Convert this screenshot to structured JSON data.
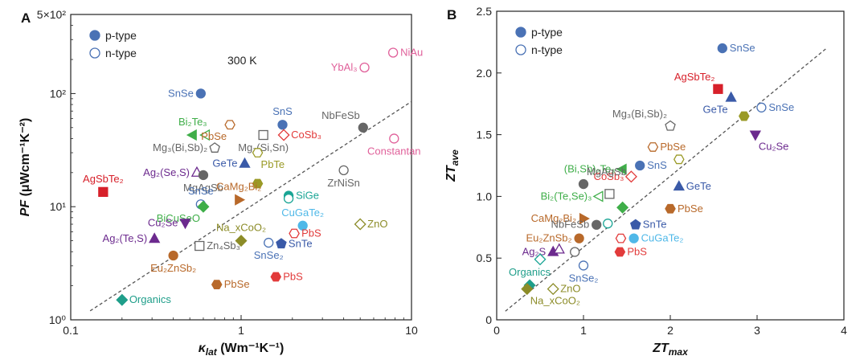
{
  "chart_data": [
    {
      "type": "scatter",
      "panel": "A",
      "xlabel_main": "κ",
      "xlabel_sub": "lat",
      "xlabel_unit": " (Wm⁻¹K⁻¹)",
      "ylabel_main": "PF",
      "ylabel_unit": " (μWcm⁻¹K⁻²)",
      "x_scale": "log",
      "y_scale": "log",
      "xlim": [
        0.1,
        10
      ],
      "ylim": [
        1,
        500
      ],
      "x_ticks": [
        {
          "v": 0.1,
          "label": "0.1"
        },
        {
          "v": 1,
          "label": "1"
        },
        {
          "v": 10,
          "label": "10"
        }
      ],
      "y_ticks": [
        {
          "v": 1,
          "label": "10⁰"
        },
        {
          "v": 10,
          "label": "10¹"
        },
        {
          "v": 100,
          "label": "10²"
        },
        {
          "v": 500,
          "label": "5×10²"
        }
      ],
      "annotation": "300 K",
      "legend": [
        {
          "label": "p-type",
          "filled": true
        },
        {
          "label": "n-type",
          "filled": false
        }
      ],
      "points": [
        {
          "name": "SnSe",
          "x": 0.58,
          "y": 100,
          "marker": "circle",
          "filled": true,
          "color": "#4a72b5",
          "labelSide": "left"
        },
        {
          "name": "Bi₂Te₃",
          "x": 0.52,
          "y": 43,
          "marker": "triL",
          "filled": true,
          "color": "#3fae49",
          "labelSide": "above"
        },
        {
          "name": "Bi₂Te₃ n",
          "x": 0.62,
          "y": 43,
          "marker": "triL",
          "filled": false,
          "color": "#3fae49"
        },
        {
          "name": "PbSe",
          "x": 0.86,
          "y": 53,
          "marker": "hex",
          "filled": false,
          "color": "#b8692a",
          "labelSide": "belowleft"
        },
        {
          "name": "Mg₃(Bi,Sb)₂",
          "x": 0.7,
          "y": 33,
          "marker": "pent",
          "filled": false,
          "color": "#666666",
          "labelSide": "left"
        },
        {
          "name": "Mg₂(Si,Sn)",
          "x": 1.35,
          "y": 43,
          "marker": "square",
          "filled": false,
          "color": "#666666",
          "labelSide": "below"
        },
        {
          "name": "SnS",
          "x": 1.75,
          "y": 53,
          "marker": "circle",
          "filled": true,
          "color": "#4a72b5",
          "labelSide": "above"
        },
        {
          "name": "CoSb₃",
          "x": 1.78,
          "y": 43,
          "marker": "diamond",
          "filled": false,
          "color": "#e23b3b",
          "labelSide": "right"
        },
        {
          "name": "GeTe",
          "x": 1.05,
          "y": 24,
          "marker": "triU",
          "filled": true,
          "color": "#3a5aa8",
          "labelSide": "left"
        },
        {
          "name": "Ag₂(Se,S)",
          "x": 0.55,
          "y": 20,
          "marker": "triU",
          "filled": false,
          "color": "#6c2a8e",
          "labelSide": "left"
        },
        {
          "name": "MgAgSb",
          "x": 0.6,
          "y": 19,
          "marker": "circle",
          "filled": true,
          "color": "#666666",
          "labelSide": "below"
        },
        {
          "name": "PbTe",
          "x": 1.25,
          "y": 30,
          "marker": "hex",
          "filled": false,
          "color": "#9a9a26",
          "labelSide": "belowright"
        },
        {
          "name": "PbTe p",
          "x": 1.25,
          "y": 16,
          "marker": "hex",
          "filled": true,
          "color": "#9a9a26"
        },
        {
          "name": "NbFeSb",
          "x": 5.2,
          "y": 50,
          "marker": "circle",
          "filled": true,
          "color": "#666666",
          "labelSide": "aboveleft"
        },
        {
          "name": "YbAl₃",
          "x": 5.3,
          "y": 170,
          "marker": "circle",
          "filled": false,
          "color": "#e0609a",
          "labelSide": "left"
        },
        {
          "name": "NiAu",
          "x": 7.8,
          "y": 230,
          "marker": "circle",
          "filled": false,
          "color": "#e0609a",
          "labelSide": "right"
        },
        {
          "name": "Constantan",
          "x": 7.9,
          "y": 40,
          "marker": "circle",
          "filled": false,
          "color": "#e0609a",
          "labelSide": "below"
        },
        {
          "name": "AgSbTe₂",
          "x": 0.155,
          "y": 13.5,
          "marker": "square",
          "filled": true,
          "color": "#d7202a",
          "labelSide": "above"
        },
        {
          "name": "SnSe n",
          "x": 0.58,
          "y": 10.5,
          "marker": "circle",
          "filled": false,
          "color": "#4a72b5",
          "labelSide": "above",
          "label": "SnSe"
        },
        {
          "name": "BiCuSeO",
          "x": 0.6,
          "y": 10,
          "marker": "diamond",
          "filled": true,
          "color": "#3fae49",
          "labelSide": "belowleft"
        },
        {
          "name": "CaMg₂Bi₂",
          "x": 0.97,
          "y": 11.5,
          "marker": "triR",
          "filled": true,
          "color": "#b8692a",
          "labelSide": "above"
        },
        {
          "name": "ZrNiSn",
          "x": 4.0,
          "y": 21,
          "marker": "circle",
          "filled": false,
          "color": "#666666",
          "labelSide": "below"
        },
        {
          "name": "SiGe",
          "x": 1.9,
          "y": 12.5,
          "marker": "circle",
          "filled": true,
          "color": "#1aa595",
          "labelSide": "right"
        },
        {
          "name": "SiGe n",
          "x": 1.9,
          "y": 11.8,
          "marker": "circle",
          "filled": false,
          "color": "#1aa595"
        },
        {
          "name": "Cu₂Se",
          "x": 0.47,
          "y": 7.2,
          "marker": "triD",
          "filled": true,
          "color": "#6c2a8e",
          "labelSide": "left"
        },
        {
          "name": "Ag₂(Te,S)",
          "x": 0.31,
          "y": 5.2,
          "marker": "triU",
          "filled": true,
          "color": "#6c2a8e",
          "labelSide": "left"
        },
        {
          "name": "Na_xCoO₂",
          "x": 1.0,
          "y": 5.0,
          "marker": "diamond",
          "filled": true,
          "color": "#8c8c28",
          "labelSide": "above"
        },
        {
          "name": "Zn₄Sb₃",
          "x": 0.57,
          "y": 4.5,
          "marker": "square",
          "filled": false,
          "color": "#666666",
          "labelSide": "right"
        },
        {
          "name": "Eu₂ZnSb₂",
          "x": 0.4,
          "y": 3.7,
          "marker": "circle",
          "filled": true,
          "color": "#b8692a",
          "labelSide": "below"
        },
        {
          "name": "CuGaTe₂",
          "x": 2.3,
          "y": 6.8,
          "marker": "circle",
          "filled": true,
          "color": "#4fb8e8",
          "labelSide": "above"
        },
        {
          "name": "PbS n",
          "x": 2.05,
          "y": 5.8,
          "marker": "hex",
          "filled": false,
          "color": "#e23b3b",
          "labelSide": "right",
          "label": "PbS"
        },
        {
          "name": "SnSe₂",
          "x": 1.45,
          "y": 4.8,
          "marker": "circle",
          "filled": false,
          "color": "#4a72b5",
          "labelSide": "below"
        },
        {
          "name": "SnTe",
          "x": 1.72,
          "y": 4.7,
          "marker": "pent",
          "filled": true,
          "color": "#3a5aa8",
          "labelSide": "right"
        },
        {
          "name": "ZnO",
          "x": 5.0,
          "y": 7.0,
          "marker": "diamond",
          "filled": false,
          "color": "#8c8c28",
          "labelSide": "right"
        },
        {
          "name": "PbSe p",
          "x": 0.72,
          "y": 2.05,
          "marker": "hex",
          "filled": true,
          "color": "#b8692a",
          "labelSide": "right",
          "label": "PbSe"
        },
        {
          "name": "PbS",
          "x": 1.6,
          "y": 2.4,
          "marker": "hex",
          "filled": true,
          "color": "#e23b3b",
          "labelSide": "right"
        },
        {
          "name": "Organics",
          "x": 0.2,
          "y": 1.5,
          "marker": "diamond",
          "filled": true,
          "color": "#1f9e8a",
          "labelSide": "right"
        }
      ],
      "trend_line": [
        [
          0.13,
          1.2
        ],
        [
          10,
          85
        ]
      ]
    },
    {
      "type": "scatter",
      "panel": "B",
      "xlabel_main": "ZT",
      "xlabel_sub": "max",
      "ylabel_main": "ZT",
      "ylabel_sub": "ave",
      "xlim": [
        0,
        4
      ],
      "ylim": [
        0,
        2.5
      ],
      "x_ticks": [
        {
          "v": 0,
          "label": "0"
        },
        {
          "v": 1,
          "label": "1"
        },
        {
          "v": 2,
          "label": "2"
        },
        {
          "v": 3,
          "label": "3"
        },
        {
          "v": 4,
          "label": "4"
        }
      ],
      "y_ticks": [
        {
          "v": 0,
          "label": "0"
        },
        {
          "v": 0.5,
          "label": "0.5"
        },
        {
          "v": 1.0,
          "label": "1.0"
        },
        {
          "v": 1.5,
          "label": "1.5"
        },
        {
          "v": 2.0,
          "label": "2.0"
        },
        {
          "v": 2.5,
          "label": "2.5"
        }
      ],
      "legend": [
        {
          "label": "p-type",
          "filled": true
        },
        {
          "label": "n-type",
          "filled": false
        }
      ],
      "points": [
        {
          "name": "SnSe",
          "x": 2.6,
          "y": 2.2,
          "marker": "circle",
          "filled": true,
          "color": "#4a72b5",
          "labelSide": "right"
        },
        {
          "name": "AgSbTe₂",
          "x": 2.55,
          "y": 1.87,
          "marker": "square",
          "filled": true,
          "color": "#d7202a",
          "labelSide": "aboveleft"
        },
        {
          "name": "GeTe",
          "x": 2.7,
          "y": 1.8,
          "marker": "triU",
          "filled": true,
          "color": "#3a5aa8",
          "labelSide": "belowleft"
        },
        {
          "name": "SnSe n",
          "x": 3.05,
          "y": 1.72,
          "marker": "circle",
          "filled": false,
          "color": "#4a72b5",
          "labelSide": "right",
          "label": "SnSe"
        },
        {
          "name": "Mg₃(Bi,Sb)₂",
          "x": 2.0,
          "y": 1.57,
          "marker": "pent",
          "filled": false,
          "color": "#666666",
          "labelSide": "aboveleft"
        },
        {
          "name": "PbTe p",
          "x": 2.85,
          "y": 1.65,
          "marker": "hex",
          "filled": true,
          "color": "#9a9a26"
        },
        {
          "name": "Cu₂Se",
          "x": 2.98,
          "y": 1.5,
          "marker": "triD",
          "filled": true,
          "color": "#6c2a8e",
          "labelSide": "belowright"
        },
        {
          "name": "PbSe",
          "x": 1.8,
          "y": 1.4,
          "marker": "hex",
          "filled": false,
          "color": "#b8692a",
          "labelSide": "right"
        },
        {
          "name": "PbTe n",
          "x": 2.1,
          "y": 1.3,
          "marker": "hex",
          "filled": false,
          "color": "#9a9a26"
        },
        {
          "name": "(Bi,Sb)₂Te₃",
          "x": 1.45,
          "y": 1.22,
          "marker": "triL",
          "filled": true,
          "color": "#3fae49",
          "labelSide": "left"
        },
        {
          "name": "SnS",
          "x": 1.65,
          "y": 1.25,
          "marker": "circle",
          "filled": true,
          "color": "#4a72b5",
          "labelSide": "right"
        },
        {
          "name": "CoSb₃",
          "x": 1.55,
          "y": 1.16,
          "marker": "diamond",
          "filled": false,
          "color": "#e23b3b",
          "labelSide": "left"
        },
        {
          "name": "GeTe n",
          "x": 2.1,
          "y": 1.08,
          "marker": "triU",
          "filled": true,
          "color": "#3a5aa8",
          "labelSide": "right",
          "label": "GeTe"
        },
        {
          "name": "MgAgSb",
          "x": 1.0,
          "y": 1.1,
          "marker": "circle",
          "filled": true,
          "color": "#666666",
          "labelSide": "aboveright"
        },
        {
          "name": "Mg₂(Si,Sn)",
          "x": 1.3,
          "y": 1.02,
          "marker": "square",
          "filled": false,
          "color": "#666666"
        },
        {
          "name": "Bi₂(Te,Se)₃",
          "x": 1.18,
          "y": 1.0,
          "marker": "triL",
          "filled": false,
          "color": "#3fae49",
          "labelSide": "left"
        },
        {
          "name": "PbSe p",
          "x": 2.0,
          "y": 0.9,
          "marker": "hex",
          "filled": true,
          "color": "#b8692a",
          "labelSide": "right",
          "label": "PbSe"
        },
        {
          "name": "BiCuSeO",
          "x": 1.45,
          "y": 0.91,
          "marker": "diamond",
          "filled": true,
          "color": "#3fae49"
        },
        {
          "name": "CaMg₂Bi₂",
          "x": 1.0,
          "y": 0.82,
          "marker": "triR",
          "filled": true,
          "color": "#b8692a",
          "labelSide": "left"
        },
        {
          "name": "NbFeSb",
          "x": 1.15,
          "y": 0.77,
          "marker": "circle",
          "filled": true,
          "color": "#666666",
          "labelSide": "left"
        },
        {
          "name": "SnTe",
          "x": 1.6,
          "y": 0.77,
          "marker": "pent",
          "filled": true,
          "color": "#3a5aa8",
          "labelSide": "right"
        },
        {
          "name": "SiGe n",
          "x": 1.28,
          "y": 0.78,
          "marker": "circle",
          "filled": false,
          "color": "#1aa595"
        },
        {
          "name": "Eu₂ZnSb₂",
          "x": 0.95,
          "y": 0.66,
          "marker": "circle",
          "filled": true,
          "color": "#b8692a",
          "labelSide": "left"
        },
        {
          "name": "PbS n",
          "x": 1.43,
          "y": 0.66,
          "marker": "hex",
          "filled": false,
          "color": "#e23b3b"
        },
        {
          "name": "CuGaTe₂",
          "x": 1.58,
          "y": 0.66,
          "marker": "circle",
          "filled": true,
          "color": "#4fb8e8",
          "labelSide": "right"
        },
        {
          "name": "PbS",
          "x": 1.42,
          "y": 0.55,
          "marker": "hex",
          "filled": true,
          "color": "#e23b3b",
          "labelSide": "right"
        },
        {
          "name": "Ag₂S",
          "x": 0.65,
          "y": 0.55,
          "marker": "triU",
          "filled": true,
          "color": "#6c2a8e",
          "labelSide": "left"
        },
        {
          "name": "Ag₂S n",
          "x": 0.72,
          "y": 0.57,
          "marker": "triU",
          "filled": false,
          "color": "#6c2a8e"
        },
        {
          "name": "ZrNiSn",
          "x": 0.9,
          "y": 0.55,
          "marker": "circle",
          "filled": false,
          "color": "#666666"
        },
        {
          "name": "Organics n",
          "x": 0.5,
          "y": 0.49,
          "marker": "diamond",
          "filled": false,
          "color": "#1aa595"
        },
        {
          "name": "SnSe₂",
          "x": 1.0,
          "y": 0.44,
          "marker": "circle",
          "filled": false,
          "color": "#4a72b5",
          "labelSide": "below"
        },
        {
          "name": "Organics",
          "x": 0.38,
          "y": 0.28,
          "marker": "diamond",
          "filled": true,
          "color": "#1f9e8a",
          "labelSide": "above"
        },
        {
          "name": "Na_xCoO₂",
          "x": 0.35,
          "y": 0.25,
          "marker": "diamond",
          "filled": true,
          "color": "#8c8c28",
          "labelSide": "belowright"
        },
        {
          "name": "ZnO",
          "x": 0.65,
          "y": 0.25,
          "marker": "diamond",
          "filled": false,
          "color": "#8c8c28",
          "labelSide": "right"
        }
      ],
      "trend_line": [
        [
          0.1,
          0.07
        ],
        [
          3.8,
          2.2
        ]
      ]
    }
  ]
}
